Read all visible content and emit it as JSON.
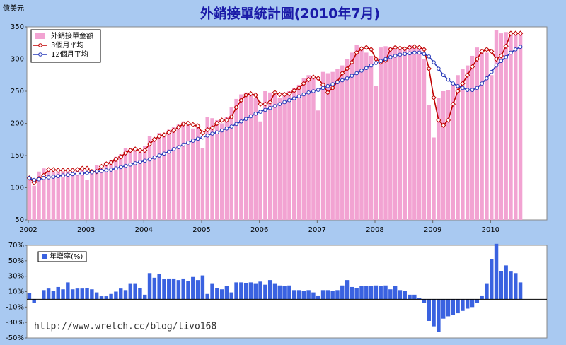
{
  "chart_data": [
    {
      "type": "bar-line",
      "title": "外銷接單統計圖(2010年7月)",
      "y_label": "億美元",
      "categories": [
        "2002",
        null,
        null,
        null,
        null,
        null,
        null,
        null,
        null,
        null,
        null,
        null,
        "2003",
        null,
        null,
        null,
        null,
        null,
        null,
        null,
        null,
        null,
        null,
        null,
        "2004",
        null,
        null,
        null,
        null,
        null,
        null,
        null,
        null,
        null,
        null,
        null,
        "2005",
        null,
        null,
        null,
        null,
        null,
        null,
        null,
        null,
        null,
        null,
        null,
        "2006",
        null,
        null,
        null,
        null,
        null,
        null,
        null,
        null,
        null,
        null,
        null,
        "2007",
        null,
        null,
        null,
        null,
        null,
        null,
        null,
        null,
        null,
        null,
        null,
        "2008",
        null,
        null,
        null,
        null,
        null,
        null,
        null,
        null,
        null,
        null,
        null,
        "2009",
        null,
        null,
        null,
        null,
        null,
        null,
        null,
        null,
        null,
        null,
        null,
        "2010",
        null,
        null,
        null,
        null,
        null,
        null
      ],
      "series": [
        {
          "name": "外銷接單金額",
          "kind": "bar",
          "color": "#f2a3d2",
          "values": [
            115,
            103,
            125,
            130,
            128,
            125,
            127,
            128,
            126,
            128,
            131,
            130,
            112,
            128,
            135,
            135,
            140,
            143,
            148,
            152,
            162,
            160,
            158,
            155,
            165,
            180,
            178,
            185,
            182,
            190,
            195,
            198,
            203,
            200,
            192,
            196,
            162,
            210,
            208,
            205,
            200,
            210,
            225,
            238,
            245,
            248,
            245,
            240,
            203,
            250,
            248,
            245,
            240,
            248,
            250,
            255,
            260,
            270,
            275,
            272,
            220,
            280,
            278,
            280,
            285,
            290,
            300,
            310,
            322,
            318,
            310,
            305,
            258,
            318,
            320,
            318,
            315,
            318,
            315,
            322,
            320,
            318,
            300,
            228,
            178,
            240,
            250,
            252,
            262,
            275,
            285,
            290,
            305,
            318,
            312,
            310,
            275,
            345,
            340,
            342,
            340,
            340,
            342
          ]
        },
        {
          "name": "3個月平均",
          "kind": "line",
          "marker": "diamond",
          "color": "#c00000",
          "values": [
            115,
            108,
            114,
            119,
            128,
            128,
            127,
            127,
            127,
            127,
            128,
            130,
            130,
            125,
            125,
            133,
            137,
            139,
            144,
            148,
            154,
            158,
            160,
            158,
            158,
            168,
            175,
            180,
            182,
            186,
            189,
            194,
            199,
            200,
            198,
            196,
            185,
            190,
            193,
            200,
            205,
            205,
            210,
            225,
            236,
            244,
            246,
            244,
            230,
            230,
            233,
            248,
            245,
            245,
            246,
            251,
            255,
            262,
            268,
            272,
            270,
            260,
            248,
            255,
            265,
            278,
            285,
            295,
            310,
            316,
            318,
            315,
            300,
            295,
            298,
            315,
            318,
            317,
            316,
            318,
            319,
            318,
            315,
            285,
            240,
            205,
            197,
            205,
            230,
            250,
            262,
            275,
            288,
            300,
            312,
            315,
            312,
            300,
            305,
            320,
            340,
            340,
            340
          ]
        },
        {
          "name": "12個月平均",
          "kind": "line",
          "marker": "circle",
          "color": "#2638b8",
          "values": [
            115,
            112,
            113,
            115,
            116,
            117,
            118,
            119,
            120,
            121,
            122,
            122,
            123,
            124,
            125,
            126,
            127,
            128,
            130,
            132,
            134,
            136,
            138,
            140,
            142,
            144,
            147,
            150,
            153,
            156,
            160,
            163,
            167,
            170,
            173,
            176,
            178,
            181,
            184,
            186,
            189,
            192,
            195,
            199,
            203,
            207,
            211,
            215,
            218,
            221,
            224,
            227,
            230,
            233,
            236,
            239,
            242,
            245,
            248,
            250,
            252,
            255,
            258,
            261,
            264,
            267,
            270,
            274,
            278,
            282,
            286,
            290,
            294,
            297,
            300,
            303,
            305,
            307,
            308,
            309,
            310,
            310,
            308,
            304,
            295,
            285,
            275,
            268,
            262,
            258,
            255,
            252,
            252,
            255,
            262,
            270,
            280,
            290,
            297,
            303,
            310,
            315,
            319
          ]
        }
      ],
      "ylim": [
        50,
        350
      ],
      "yticks": [
        50,
        100,
        150,
        200,
        250,
        300,
        350
      ],
      "grid": false
    },
    {
      "type": "bar",
      "annotation": "http://www.wretch.cc/blog/tivo168",
      "series": [
        {
          "name": "年增率(%)",
          "color": "#3a62e0",
          "values": [
            8,
            -5,
            0,
            12,
            14,
            11,
            16,
            13,
            22,
            13,
            14,
            14,
            15,
            13,
            9,
            4,
            4,
            7,
            10,
            14,
            12,
            20,
            20,
            15,
            6,
            34,
            28,
            33,
            26,
            27,
            27,
            25,
            27,
            24,
            29,
            25,
            31,
            7,
            20,
            15,
            13,
            17,
            9,
            22,
            22,
            21,
            22,
            20,
            23,
            19,
            25,
            20,
            18,
            17,
            18,
            12,
            12,
            11,
            12,
            9,
            5,
            12,
            12,
            11,
            12,
            18,
            25,
            16,
            15,
            17,
            17,
            17,
            18,
            17,
            18,
            13,
            17,
            12,
            11,
            6,
            6,
            2,
            -5,
            -28,
            -35,
            -42,
            -25,
            -22,
            -20,
            -18,
            -15,
            -12,
            -10,
            -5,
            5,
            20,
            52,
            72,
            37,
            44,
            36,
            34,
            22
          ]
        }
      ],
      "ylim": [
        -50,
        70
      ],
      "yticks": [
        {
          "value": -50,
          "label": "-50%"
        },
        {
          "value": -30,
          "label": "-30%"
        },
        {
          "value": -10,
          "label": "-10%"
        },
        {
          "value": 10,
          "label": "10%"
        },
        {
          "value": 30,
          "label": "30%"
        },
        {
          "value": 50,
          "label": "50%"
        },
        {
          "value": 70,
          "label": "70%"
        }
      ],
      "zero_line": true
    }
  ]
}
